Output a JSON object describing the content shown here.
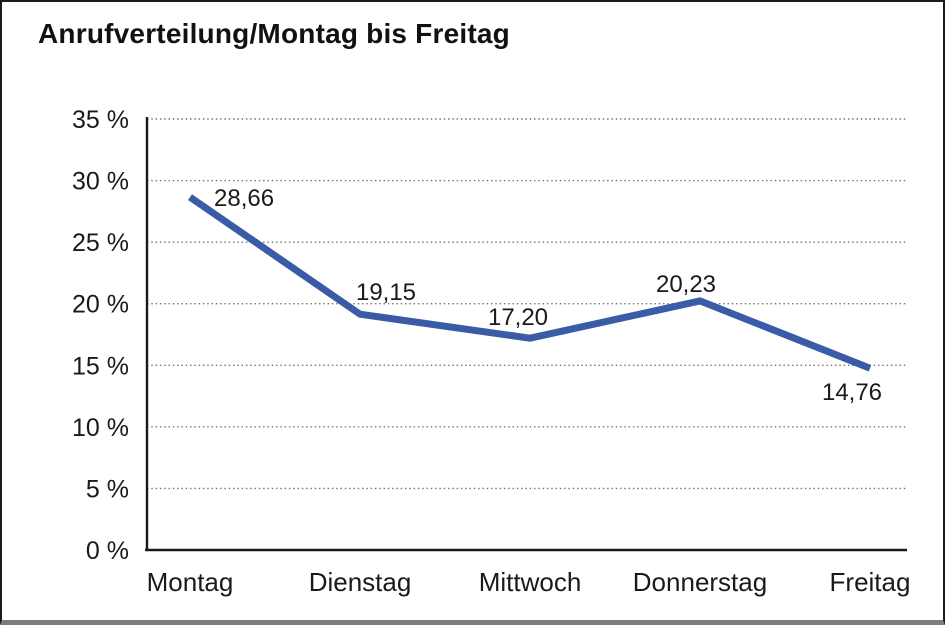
{
  "window": {
    "background": "#ffffff",
    "border_color": "#1a1a1a",
    "bottom_strip_color": "#7d7d7d"
  },
  "title": "Anrufverteilung/Montag bis Freitag",
  "chart_data": {
    "type": "line",
    "title": "Anrufverteilung/Montag bis Freitag",
    "categories": [
      "Montag",
      "Dienstag",
      "Mittwoch",
      "Donnerstag",
      "Freitag"
    ],
    "values": [
      28.66,
      19.15,
      17.2,
      20.23,
      14.76
    ],
    "data_labels": [
      "28,66",
      "19,15",
      "17,20",
      "20,23",
      "14,76"
    ],
    "xlabel": "",
    "ylabel": "",
    "ylim": [
      0,
      35
    ],
    "ytick_step": 5,
    "ytick_labels": [
      "0 %",
      "5 %",
      "10 %",
      "15 %",
      "20 %",
      "25 %",
      "30 %",
      "35 %"
    ],
    "grid": "horizontal-dotted",
    "gridline_color": "#777777",
    "axis_color": "#1a1a1a",
    "line_color": "#3A5BA6",
    "legend": "none"
  }
}
